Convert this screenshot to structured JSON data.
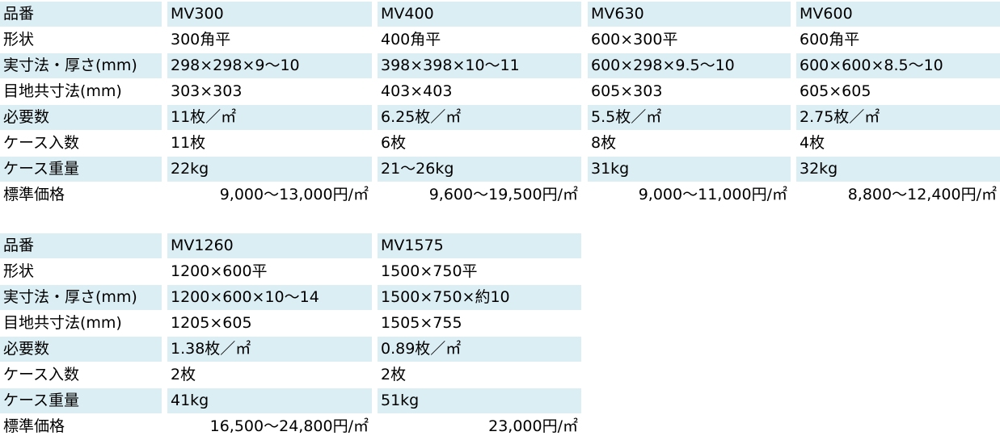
{
  "tables": [
    {
      "rows": [
        [
          "品番",
          "MV300",
          "MV400",
          "MV630",
          "MV600"
        ],
        [
          "形状",
          "300角平",
          "400角平",
          "600×300平",
          "600角平"
        ],
        [
          "実寸法・厚さ(mm)",
          "298×298×9〜10",
          "398×398×10〜11",
          "600×298×9.5〜10",
          "600×600×8.5〜10"
        ],
        [
          "目地共寸法(mm)",
          "303×303",
          "403×403",
          "605×303",
          "605×605"
        ],
        [
          "必要数",
          "11枚／㎡",
          "6.25枚／㎡",
          "5.5枚／㎡",
          "2.75枚／㎡"
        ],
        [
          "ケース入数",
          "11枚",
          "6枚",
          "8枚",
          "4枚"
        ],
        [
          "ケース重量",
          "22kg",
          "21〜26kg",
          "31kg",
          "32kg"
        ],
        [
          "標準価格",
          "9,000〜13,000円/㎡",
          "9,600〜19,500円/㎡",
          "9,000〜11,000円/㎡",
          "8,800〜12,400円/㎡"
        ]
      ]
    },
    {
      "rows": [
        [
          "品番",
          "MV1260",
          "MV1575"
        ],
        [
          "形状",
          "1200×600平",
          "1500×750平"
        ],
        [
          "実寸法・厚さ(mm)",
          "1200×600×10〜14",
          "1500×750×約10"
        ],
        [
          "目地共寸法(mm)",
          "1205×605",
          "1505×755"
        ],
        [
          "必要数",
          "1.38枚／㎡",
          "0.89枚／㎡"
        ],
        [
          "ケース入数",
          "2枚",
          "2枚"
        ],
        [
          "ケース重量",
          "41kg",
          "51kg"
        ],
        [
          "標準価格",
          "16,500〜24,800円/㎡",
          "23,000円/㎡"
        ]
      ]
    }
  ]
}
